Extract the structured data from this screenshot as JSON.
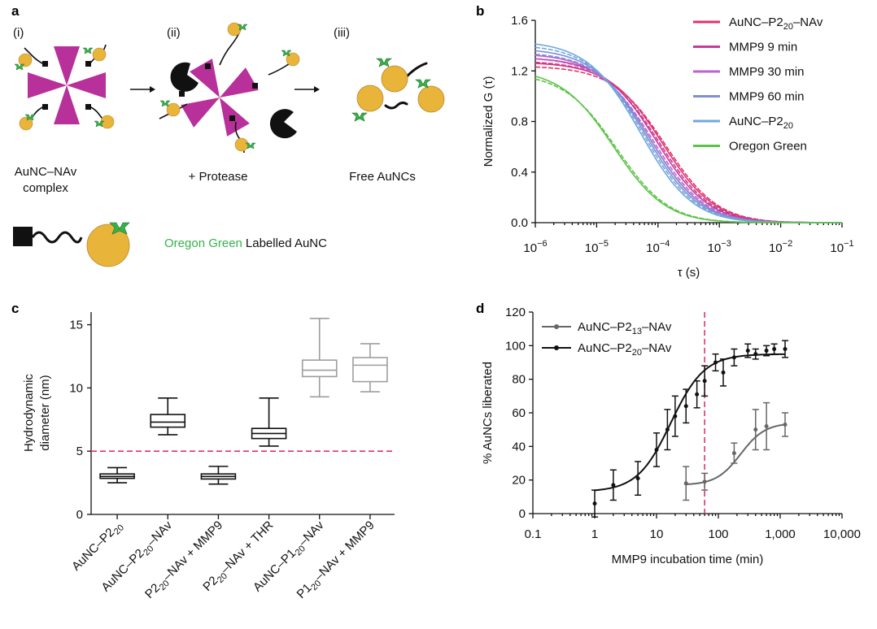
{
  "panel_a": {
    "label": "a",
    "steps": [
      {
        "roman": "(i)",
        "caption_line1": "AuNC–NAv",
        "caption_line2": "complex"
      },
      {
        "roman": "(ii)",
        "caption_line1": "+ Protease",
        "caption_line2": ""
      },
      {
        "roman": "(iii)",
        "caption_line1": "Free AuNCs",
        "caption_line2": ""
      }
    ],
    "legend_green": "Oregon Green",
    "legend_black": "Labelled AuNC",
    "colors": {
      "gold": "#e8b43a",
      "purple": "#b8309a",
      "green": "#35b24a",
      "black": "#111111"
    }
  },
  "chart_data": [
    {
      "panel": "b",
      "type": "line",
      "xlabel": "τ (s)",
      "ylabel": "Normalized G (τ)",
      "xscale": "log",
      "xlim": [
        "1e-6",
        "1e-1"
      ],
      "ylim": [
        0,
        1.6
      ],
      "x_ticks": [
        -6,
        -5,
        -4,
        -3,
        -2,
        -1
      ],
      "y_ticks": [
        "0.0",
        "0.4",
        "0.8",
        "1.2",
        "1.6"
      ],
      "legend_position": "top-right",
      "series": [
        {
          "name": "AuNC–P2",
          "sub": "20",
          "name_suffix": "–NAv",
          "color": "#e0336a",
          "g0": 1.27,
          "tau_log10": -3.92
        },
        {
          "name": "MMP9 9 min",
          "sub": "",
          "name_suffix": "",
          "color": "#c8399a",
          "g0": 1.31,
          "tau_log10": -4.02
        },
        {
          "name": "MMP9 30 min",
          "sub": "",
          "name_suffix": "",
          "color": "#b866cc",
          "g0": 1.34,
          "tau_log10": -4.12
        },
        {
          "name": "MMP9 60 min",
          "sub": "",
          "name_suffix": "",
          "color": "#7f8ed6",
          "g0": 1.38,
          "tau_log10": -4.18
        },
        {
          "name": "AuNC–P2",
          "sub": "20",
          "name_suffix": "",
          "color": "#6fa8dc",
          "g0": 1.44,
          "tau_log10": -4.28
        },
        {
          "name": "Oregon Green",
          "sub": "",
          "name_suffix": "",
          "color": "#5cc34a",
          "g0": 1.22,
          "tau_log10": -4.72
        }
      ]
    },
    {
      "panel": "c",
      "type": "box",
      "ylabel_line1": "Hydrodynamic",
      "ylabel_line2": "diameter (nm)",
      "ylim": [
        0,
        16
      ],
      "y_ticks": [
        "0",
        "5",
        "10",
        "15"
      ],
      "threshold": 5,
      "threshold_color": "#e0336a",
      "categories": [
        {
          "parts": [
            [
              "AuNC–P2",
              ""
            ],
            [
              "20",
              "sub"
            ]
          ],
          "color": "#111111",
          "min": 2.5,
          "q1": 2.85,
          "median": 3.0,
          "q3": 3.2,
          "max": 3.7
        },
        {
          "parts": [
            [
              "AuNC–P2",
              ""
            ],
            [
              "20",
              "sub"
            ],
            [
              "–NAv",
              ""
            ]
          ],
          "color": "#111111",
          "min": 6.3,
          "q1": 6.9,
          "median": 7.3,
          "q3": 7.9,
          "max": 9.2
        },
        {
          "parts": [
            [
              "P2",
              ""
            ],
            [
              "20",
              "sub"
            ],
            [
              "–NAv + MMP9",
              ""
            ]
          ],
          "color": "#111111",
          "min": 2.4,
          "q1": 2.8,
          "median": 3.0,
          "q3": 3.2,
          "max": 3.8
        },
        {
          "parts": [
            [
              "P2",
              ""
            ],
            [
              "20",
              "sub"
            ],
            [
              "–NAv + THR",
              ""
            ]
          ],
          "color": "#111111",
          "min": 5.4,
          "q1": 6.0,
          "median": 6.4,
          "q3": 6.8,
          "max": 9.2
        },
        {
          "parts": [
            [
              "AuNC–P1",
              ""
            ],
            [
              "20",
              "sub"
            ],
            [
              "–NAv",
              ""
            ]
          ],
          "color": "#9e9e9e",
          "min": 9.3,
          "q1": 10.9,
          "median": 11.4,
          "q3": 12.2,
          "max": 15.5
        },
        {
          "parts": [
            [
              "P1",
              ""
            ],
            [
              "20",
              "sub"
            ],
            [
              "–NAv + MMP9",
              ""
            ]
          ],
          "color": "#9e9e9e",
          "min": 9.7,
          "q1": 10.5,
          "median": 11.8,
          "q3": 12.4,
          "max": 13.5
        }
      ]
    },
    {
      "panel": "d",
      "type": "scatter",
      "xlabel": "MMP9 incubation time (min)",
      "ylabel": "% AuNCs liberated",
      "xscale": "log",
      "xlim": [
        0.1,
        10000
      ],
      "ylim": [
        0,
        120
      ],
      "x_ticks": [
        "0.1",
        "1",
        "10",
        "100",
        "1,000",
        "10,000"
      ],
      "y_ticks": [
        "0",
        "20",
        "40",
        "60",
        "80",
        "100",
        "120"
      ],
      "threshold_x": 60,
      "threshold_color": "#e0336a",
      "legend_position": "top-left",
      "series": [
        {
          "name": "AuNC–P2",
          "sub": "13",
          "name_suffix": "–NAv",
          "color": "#666666",
          "fit": {
            "bottom": 17,
            "top": 54,
            "ec50": 230,
            "hill": 2.2,
            "from": 30,
            "to": 1200
          },
          "x": [
            30,
            60,
            180,
            400,
            600,
            1200
          ],
          "y": [
            18,
            19,
            36,
            50,
            52,
            53
          ],
          "err": [
            10,
            5,
            6,
            12,
            14,
            7
          ]
        },
        {
          "name": "AuNC–P2",
          "sub": "20",
          "name_suffix": "–NAv",
          "color": "#111111",
          "fit": {
            "bottom": 13,
            "top": 95,
            "ec50": 17,
            "hill": 1.6,
            "from": 1,
            "to": 1200
          },
          "x": [
            1,
            2,
            5,
            10,
            15,
            20,
            30,
            45,
            60,
            90,
            120,
            180,
            300,
            400,
            600,
            800,
            1200
          ],
          "y": [
            6,
            17,
            21,
            38,
            50,
            58,
            64,
            71,
            79,
            90,
            84,
            93,
            97,
            95,
            97,
            98,
            98
          ],
          "err": [
            8,
            9,
            10,
            10,
            12,
            12,
            10,
            8,
            9,
            5,
            8,
            5,
            4,
            3,
            3,
            3,
            5
          ]
        }
      ]
    }
  ]
}
